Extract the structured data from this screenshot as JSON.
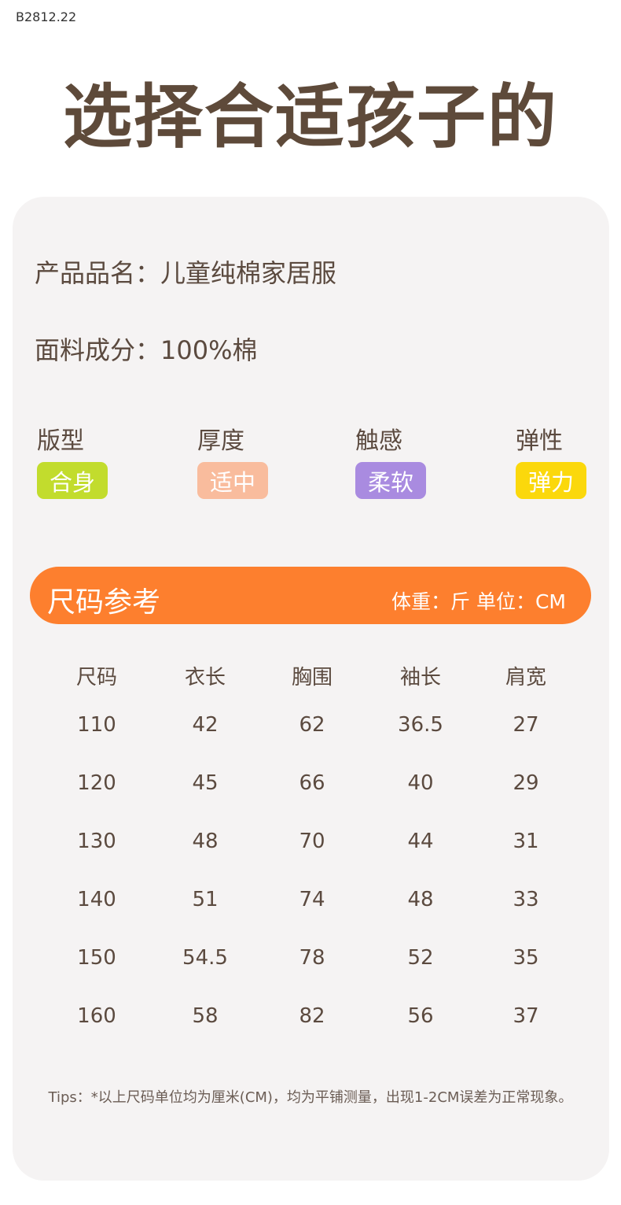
{
  "watermark": "B2812.22",
  "title": "选择合适孩子的",
  "product_name": "产品品名：儿童纯棉家居服",
  "fabric": "面料成分：100%棉",
  "attributes": [
    {
      "label": "版型",
      "value": "合身",
      "color": "#c2dc2d"
    },
    {
      "label": "厚度",
      "value": "适中",
      "color": "#f9bc9d"
    },
    {
      "label": "触感",
      "value": "柔软",
      "color": "#a98be0"
    },
    {
      "label": "弹性",
      "value": "弹力",
      "color": "#fbd80c"
    }
  ],
  "size_bar": {
    "title": "尺码参考",
    "units": "体重：斤  单位：CM",
    "color": "#fd7f2e"
  },
  "table": {
    "headers": [
      "尺码",
      "衣长",
      "胸围",
      "袖长",
      "肩宽"
    ],
    "rows": [
      [
        "110",
        "42",
        "62",
        "36.5",
        "27"
      ],
      [
        "120",
        "45",
        "66",
        "40",
        "29"
      ],
      [
        "130",
        "48",
        "70",
        "44",
        "31"
      ],
      [
        "140",
        "51",
        "74",
        "48",
        "33"
      ],
      [
        "150",
        "54.5",
        "78",
        "52",
        "35"
      ],
      [
        "160",
        "58",
        "82",
        "56",
        "37"
      ]
    ]
  },
  "tips": "Tips：*以上尺码单位均为厘米(CM)，均为平铺测量，出现1-2CM误差为正常现象。"
}
